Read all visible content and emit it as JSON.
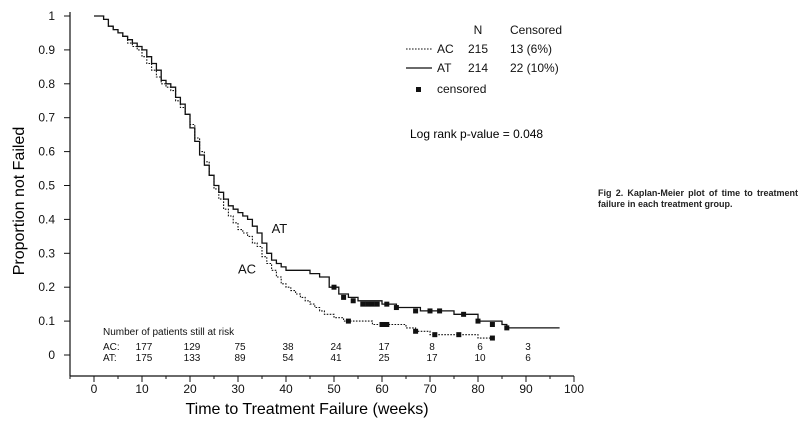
{
  "chart_data": {
    "type": "line",
    "subtype": "kaplan-meier",
    "xlabel": "Time to Treatment Failure (weeks)",
    "ylabel": "Proportion not Failed",
    "xlim": [
      -5,
      100
    ],
    "ylim": [
      0,
      1
    ],
    "xticks": [
      0,
      10,
      20,
      30,
      40,
      50,
      60,
      70,
      80,
      90,
      100
    ],
    "yticks": [
      "0",
      "0.1",
      "0.2",
      "0.3",
      "0.4",
      "0.5",
      "0.6",
      "0.7",
      "0.8",
      "0.9",
      "1"
    ],
    "grid": false,
    "legend": {
      "position": "top-right",
      "header_n": "N",
      "header_censored": "Censored",
      "rows": [
        {
          "label": "AC",
          "n": "215",
          "censored": "13  (6%)",
          "style": "dotted"
        },
        {
          "label": "AT",
          "n": "214",
          "censored": "22  (10%)",
          "style": "solid"
        }
      ],
      "censored_label": "censored"
    },
    "annotation": "Log rank p-value = 0.048",
    "series": [
      {
        "name": "AC",
        "style": "dotted",
        "points": [
          [
            0,
            1.0
          ],
          [
            2,
            0.99
          ],
          [
            3,
            0.97
          ],
          [
            4,
            0.96
          ],
          [
            5,
            0.95
          ],
          [
            6,
            0.94
          ],
          [
            7,
            0.92
          ],
          [
            8,
            0.91
          ],
          [
            9,
            0.9
          ],
          [
            10,
            0.88
          ],
          [
            11,
            0.86
          ],
          [
            12,
            0.84
          ],
          [
            13,
            0.82
          ],
          [
            14,
            0.8
          ],
          [
            15,
            0.79
          ],
          [
            16,
            0.78
          ],
          [
            17,
            0.75
          ],
          [
            18,
            0.73
          ],
          [
            19,
            0.71
          ],
          [
            20,
            0.68
          ],
          [
            21,
            0.64
          ],
          [
            22,
            0.6
          ],
          [
            23,
            0.57
          ],
          [
            24,
            0.53
          ],
          [
            25,
            0.49
          ],
          [
            26,
            0.46
          ],
          [
            27,
            0.43
          ],
          [
            28,
            0.41
          ],
          [
            29,
            0.39
          ],
          [
            30,
            0.37
          ],
          [
            31,
            0.36
          ],
          [
            32,
            0.35
          ],
          [
            33,
            0.33
          ],
          [
            34,
            0.32
          ],
          [
            35,
            0.29
          ],
          [
            36,
            0.27
          ],
          [
            37,
            0.25
          ],
          [
            38,
            0.23
          ],
          [
            39,
            0.21
          ],
          [
            40,
            0.2
          ],
          [
            41,
            0.19
          ],
          [
            42,
            0.18
          ],
          [
            43,
            0.17
          ],
          [
            44,
            0.16
          ],
          [
            45,
            0.15
          ],
          [
            46,
            0.14
          ],
          [
            47,
            0.13
          ],
          [
            48,
            0.12
          ],
          [
            50,
            0.11
          ],
          [
            52,
            0.1
          ],
          [
            55,
            0.1
          ],
          [
            58,
            0.09
          ],
          [
            62,
            0.09
          ],
          [
            65,
            0.08
          ],
          [
            67,
            0.07
          ],
          [
            70,
            0.06
          ],
          [
            75,
            0.06
          ],
          [
            80,
            0.05
          ],
          [
            83,
            0.05
          ]
        ],
        "censored": [
          [
            53,
            0.1
          ],
          [
            60,
            0.09
          ],
          [
            61,
            0.09
          ],
          [
            67,
            0.07
          ],
          [
            71,
            0.06
          ],
          [
            76,
            0.06
          ],
          [
            83,
            0.05
          ]
        ]
      },
      {
        "name": "AT",
        "style": "solid",
        "points": [
          [
            0,
            1.0
          ],
          [
            2,
            0.99
          ],
          [
            3,
            0.97
          ],
          [
            4,
            0.96
          ],
          [
            5,
            0.95
          ],
          [
            6,
            0.94
          ],
          [
            7,
            0.93
          ],
          [
            8,
            0.92
          ],
          [
            9,
            0.91
          ],
          [
            10,
            0.9
          ],
          [
            11,
            0.88
          ],
          [
            12,
            0.86
          ],
          [
            13,
            0.84
          ],
          [
            14,
            0.81
          ],
          [
            15,
            0.8
          ],
          [
            16,
            0.79
          ],
          [
            17,
            0.76
          ],
          [
            18,
            0.74
          ],
          [
            19,
            0.71
          ],
          [
            20,
            0.67
          ],
          [
            21,
            0.63
          ],
          [
            22,
            0.59
          ],
          [
            23,
            0.56
          ],
          [
            24,
            0.53
          ],
          [
            25,
            0.5
          ],
          [
            26,
            0.48
          ],
          [
            27,
            0.46
          ],
          [
            28,
            0.44
          ],
          [
            29,
            0.43
          ],
          [
            30,
            0.42
          ],
          [
            31,
            0.41
          ],
          [
            32,
            0.4
          ],
          [
            33,
            0.38
          ],
          [
            34,
            0.36
          ],
          [
            35,
            0.33
          ],
          [
            36,
            0.3
          ],
          [
            37,
            0.28
          ],
          [
            38,
            0.27
          ],
          [
            39,
            0.26
          ],
          [
            40,
            0.25
          ],
          [
            45,
            0.24
          ],
          [
            47,
            0.23
          ],
          [
            49,
            0.2
          ],
          [
            51,
            0.18
          ],
          [
            53,
            0.17
          ],
          [
            55,
            0.16
          ],
          [
            60,
            0.15
          ],
          [
            63,
            0.14
          ],
          [
            68,
            0.13
          ],
          [
            75,
            0.12
          ],
          [
            80,
            0.1
          ],
          [
            85,
            0.09
          ],
          [
            86,
            0.08
          ],
          [
            97,
            0.08
          ]
        ],
        "censored": [
          [
            50,
            0.2
          ],
          [
            52,
            0.17
          ],
          [
            54,
            0.16
          ],
          [
            56,
            0.15
          ],
          [
            57,
            0.15
          ],
          [
            58,
            0.15
          ],
          [
            59,
            0.15
          ],
          [
            61,
            0.15
          ],
          [
            63,
            0.14
          ],
          [
            67,
            0.13
          ],
          [
            70,
            0.13
          ],
          [
            72,
            0.13
          ],
          [
            77,
            0.12
          ],
          [
            80,
            0.1
          ],
          [
            83,
            0.09
          ],
          [
            86,
            0.08
          ]
        ]
      }
    ],
    "curve_labels": [
      {
        "text": "AT",
        "x": 37,
        "y": 0.36
      },
      {
        "text": "AC",
        "x": 30,
        "y": 0.24
      }
    ],
    "risk_table": {
      "title": "Number of patients still at risk",
      "rows": [
        {
          "label": "AC:",
          "values": [
            "177",
            "129",
            "75",
            "38",
            "24",
            "17",
            "8",
            "6",
            "3"
          ]
        },
        {
          "label": "AT:",
          "values": [
            "175",
            "133",
            "89",
            "54",
            "41",
            "25",
            "17",
            "10",
            "6"
          ]
        }
      ]
    }
  },
  "caption": "Fig 2.  Kaplan-Meier plot of time to treatment failure in each treatment group."
}
